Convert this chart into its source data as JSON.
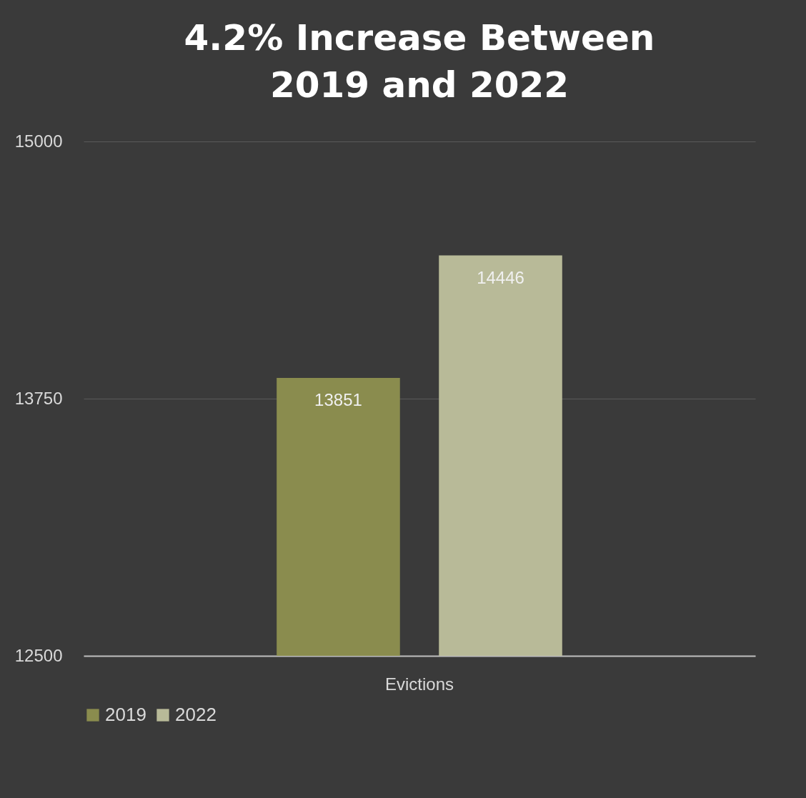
{
  "chart_data": {
    "type": "bar",
    "title": "4.2% Increase Between 2019 and 2022",
    "categories": [
      "Evictions"
    ],
    "series": [
      {
        "name": "2019",
        "color": "#8a8c4e",
        "values": [
          13851
        ]
      },
      {
        "name": "2022",
        "color": "#b8ba98",
        "values": [
          14446
        ]
      }
    ],
    "ylim": [
      12500,
      15000
    ],
    "yticks": [
      12500,
      13750,
      15000
    ],
    "grid": "y",
    "legend": "bottom",
    "data_labels": true
  }
}
